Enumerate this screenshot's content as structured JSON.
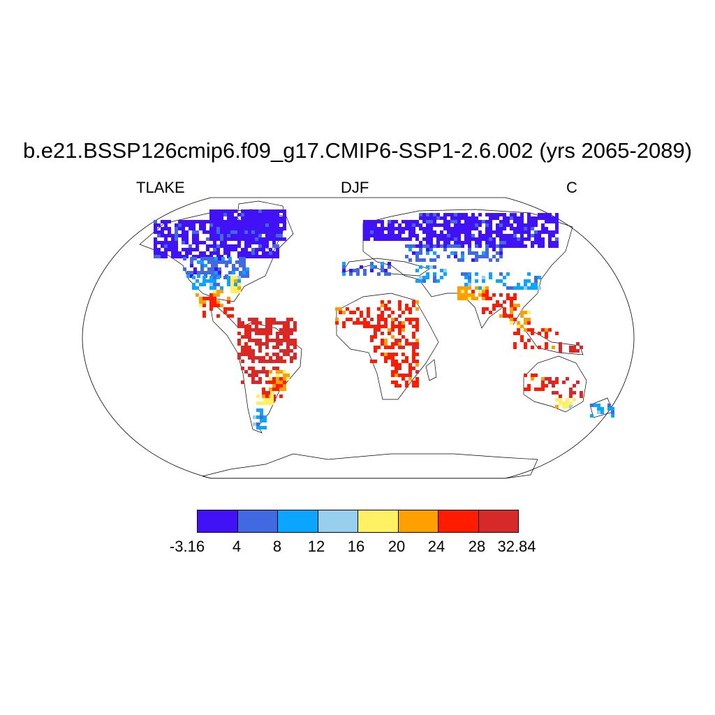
{
  "title": "b.e21.BSSP126cmip6.f09_g17.CMIP6-SSP1-2.6.002 (yrs 2065-2089)",
  "subtitle_left": "TLAKE",
  "subtitle_center": "DJF",
  "subtitle_right": "C",
  "colorbar": {
    "labels": [
      "-3.16",
      "4",
      "8",
      "12",
      "16",
      "20",
      "24",
      "28",
      "32.84"
    ],
    "colors": [
      "#4212f7",
      "#4169e1",
      "#0ba5ff",
      "#96d0ee",
      "#fff064",
      "#ff9f00",
      "#ff1c00",
      "#d62a2a"
    ]
  }
}
